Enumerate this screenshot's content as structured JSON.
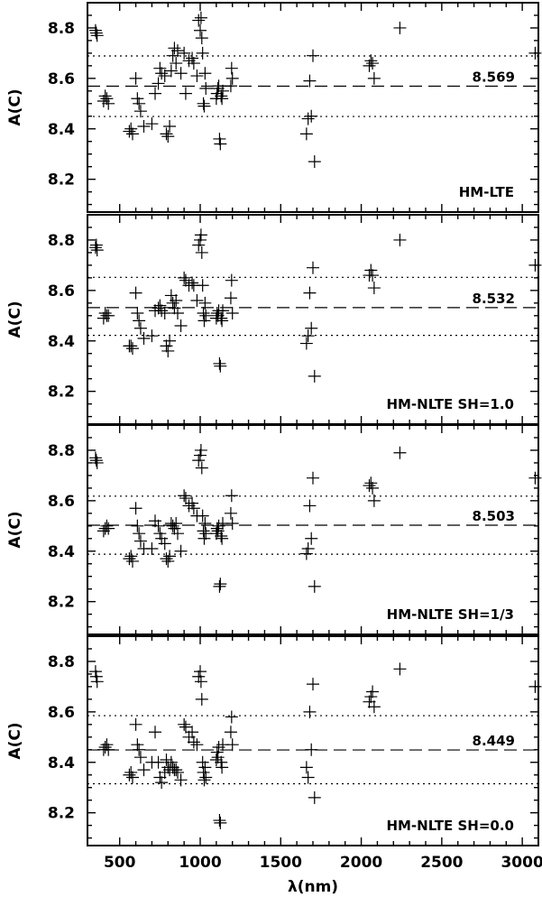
{
  "chart_data": [
    {
      "type": "scatter",
      "label": "HM-LTE",
      "mean": 8.569,
      "mean_text": "8.569",
      "sigma_band": [
        8.449,
        8.689
      ],
      "xlim": [
        300,
        3100
      ],
      "ylim": [
        8.07,
        8.9
      ],
      "yticks": [
        "8.2",
        "8.4",
        "8.6",
        "8.8"
      ],
      "ylabel": "A(C)",
      "points": [
        [
          350,
          8.79
        ],
        [
          355,
          8.78
        ],
        [
          360,
          8.77
        ],
        [
          400,
          8.51
        ],
        [
          410,
          8.53
        ],
        [
          420,
          8.52
        ],
        [
          430,
          8.5
        ],
        [
          560,
          8.39
        ],
        [
          570,
          8.4
        ],
        [
          580,
          8.38
        ],
        [
          600,
          8.6
        ],
        [
          610,
          8.52
        ],
        [
          620,
          8.5
        ],
        [
          630,
          8.47
        ],
        [
          650,
          8.41
        ],
        [
          700,
          8.42
        ],
        [
          720,
          8.54
        ],
        [
          740,
          8.58
        ],
        [
          750,
          8.64
        ],
        [
          760,
          8.62
        ],
        [
          780,
          8.61
        ],
        [
          790,
          8.38
        ],
        [
          800,
          8.37
        ],
        [
          810,
          8.41
        ],
        [
          820,
          8.63
        ],
        [
          830,
          8.69
        ],
        [
          840,
          8.72
        ],
        [
          850,
          8.66
        ],
        [
          860,
          8.71
        ],
        [
          880,
          8.62
        ],
        [
          900,
          8.7
        ],
        [
          910,
          8.54
        ],
        [
          930,
          8.67
        ],
        [
          950,
          8.68
        ],
        [
          960,
          8.66
        ],
        [
          980,
          8.61
        ],
        [
          990,
          8.83
        ],
        [
          1000,
          8.79
        ],
        [
          1005,
          8.84
        ],
        [
          1010,
          8.76
        ],
        [
          1015,
          8.7
        ],
        [
          1020,
          8.5
        ],
        [
          1025,
          8.49
        ],
        [
          1030,
          8.62
        ],
        [
          1035,
          8.56
        ],
        [
          1100,
          8.52
        ],
        [
          1105,
          8.54
        ],
        [
          1110,
          8.56
        ],
        [
          1115,
          8.57
        ],
        [
          1120,
          8.36
        ],
        [
          1125,
          8.34
        ],
        [
          1130,
          8.53
        ],
        [
          1135,
          8.52
        ],
        [
          1140,
          8.55
        ],
        [
          1190,
          8.57
        ],
        [
          1195,
          8.64
        ],
        [
          1200,
          8.6
        ],
        [
          1660,
          8.38
        ],
        [
          1670,
          8.44
        ],
        [
          1680,
          8.59
        ],
        [
          1690,
          8.45
        ],
        [
          1700,
          8.69
        ],
        [
          1710,
          8.27
        ],
        [
          2050,
          8.65
        ],
        [
          2060,
          8.67
        ],
        [
          2070,
          8.66
        ],
        [
          2080,
          8.6
        ],
        [
          2240,
          8.8
        ],
        [
          3080,
          8.7
        ]
      ]
    },
    {
      "type": "scatter",
      "label": "HM-NLTE SH=1.0",
      "mean": 8.532,
      "mean_text": "8.532",
      "sigma_band": [
        8.422,
        8.652
      ],
      "xlim": [
        300,
        3100
      ],
      "ylim": [
        8.07,
        8.9
      ],
      "yticks": [
        "8.2",
        "8.4",
        "8.6",
        "8.8"
      ],
      "ylabel": "A(C)",
      "points": [
        [
          350,
          8.77
        ],
        [
          355,
          8.78
        ],
        [
          360,
          8.76
        ],
        [
          400,
          8.49
        ],
        [
          410,
          8.51
        ],
        [
          420,
          8.5
        ],
        [
          430,
          8.5
        ],
        [
          560,
          8.38
        ],
        [
          570,
          8.38
        ],
        [
          580,
          8.37
        ],
        [
          600,
          8.59
        ],
        [
          610,
          8.51
        ],
        [
          620,
          8.48
        ],
        [
          630,
          8.45
        ],
        [
          650,
          8.41
        ],
        [
          700,
          8.42
        ],
        [
          720,
          8.52
        ],
        [
          740,
          8.53
        ],
        [
          750,
          8.54
        ],
        [
          760,
          8.52
        ],
        [
          780,
          8.51
        ],
        [
          790,
          8.38
        ],
        [
          800,
          8.36
        ],
        [
          810,
          8.4
        ],
        [
          820,
          8.58
        ],
        [
          830,
          8.55
        ],
        [
          840,
          8.53
        ],
        [
          850,
          8.56
        ],
        [
          860,
          8.51
        ],
        [
          880,
          8.46
        ],
        [
          900,
          8.65
        ],
        [
          910,
          8.64
        ],
        [
          930,
          8.62
        ],
        [
          950,
          8.63
        ],
        [
          960,
          8.62
        ],
        [
          980,
          8.56
        ],
        [
          990,
          8.78
        ],
        [
          1000,
          8.8
        ],
        [
          1005,
          8.82
        ],
        [
          1010,
          8.75
        ],
        [
          1015,
          8.62
        ],
        [
          1020,
          8.51
        ],
        [
          1025,
          8.48
        ],
        [
          1030,
          8.55
        ],
        [
          1035,
          8.5
        ],
        [
          1100,
          8.49
        ],
        [
          1105,
          8.51
        ],
        [
          1110,
          8.5
        ],
        [
          1115,
          8.52
        ],
        [
          1120,
          8.31
        ],
        [
          1125,
          8.3
        ],
        [
          1130,
          8.49
        ],
        [
          1135,
          8.48
        ],
        [
          1140,
          8.52
        ],
        [
          1190,
          8.57
        ],
        [
          1195,
          8.64
        ],
        [
          1200,
          8.51
        ],
        [
          1660,
          8.39
        ],
        [
          1670,
          8.42
        ],
        [
          1680,
          8.59
        ],
        [
          1690,
          8.45
        ],
        [
          1700,
          8.69
        ],
        [
          1710,
          8.26
        ],
        [
          2050,
          8.66
        ],
        [
          2060,
          8.68
        ],
        [
          2070,
          8.66
        ],
        [
          2080,
          8.61
        ],
        [
          2240,
          8.8
        ],
        [
          3080,
          8.7
        ]
      ]
    },
    {
      "type": "scatter",
      "label": "HM-NLTE SH=1/3",
      "mean": 8.503,
      "mean_text": "8.503",
      "sigma_band": [
        8.388,
        8.618
      ],
      "xlim": [
        300,
        3100
      ],
      "ylim": [
        8.07,
        8.9
      ],
      "yticks": [
        "8.2",
        "8.4",
        "8.6",
        "8.8"
      ],
      "ylabel": "A(C)",
      "points": [
        [
          350,
          8.77
        ],
        [
          355,
          8.76
        ],
        [
          360,
          8.75
        ],
        [
          400,
          8.48
        ],
        [
          410,
          8.49
        ],
        [
          420,
          8.5
        ],
        [
          430,
          8.49
        ],
        [
          560,
          8.37
        ],
        [
          570,
          8.38
        ],
        [
          580,
          8.36
        ],
        [
          600,
          8.57
        ],
        [
          610,
          8.5
        ],
        [
          620,
          8.47
        ],
        [
          630,
          8.44
        ],
        [
          650,
          8.41
        ],
        [
          700,
          8.41
        ],
        [
          720,
          8.52
        ],
        [
          740,
          8.5
        ],
        [
          750,
          8.47
        ],
        [
          760,
          8.45
        ],
        [
          780,
          8.43
        ],
        [
          790,
          8.37
        ],
        [
          800,
          8.36
        ],
        [
          810,
          8.38
        ],
        [
          820,
          8.51
        ],
        [
          830,
          8.5
        ],
        [
          840,
          8.49
        ],
        [
          850,
          8.51
        ],
        [
          860,
          8.47
        ],
        [
          880,
          8.4
        ],
        [
          900,
          8.62
        ],
        [
          910,
          8.61
        ],
        [
          930,
          8.58
        ],
        [
          950,
          8.59
        ],
        [
          960,
          8.57
        ],
        [
          980,
          8.54
        ],
        [
          990,
          8.76
        ],
        [
          1000,
          8.78
        ],
        [
          1005,
          8.8
        ],
        [
          1010,
          8.73
        ],
        [
          1015,
          8.54
        ],
        [
          1020,
          8.48
        ],
        [
          1025,
          8.45
        ],
        [
          1030,
          8.51
        ],
        [
          1035,
          8.47
        ],
        [
          1100,
          8.47
        ],
        [
          1105,
          8.49
        ],
        [
          1110,
          8.48
        ],
        [
          1115,
          8.5
        ],
        [
          1120,
          8.26
        ],
        [
          1125,
          8.27
        ],
        [
          1130,
          8.46
        ],
        [
          1135,
          8.45
        ],
        [
          1140,
          8.51
        ],
        [
          1190,
          8.55
        ],
        [
          1195,
          8.62
        ],
        [
          1200,
          8.51
        ],
        [
          1660,
          8.39
        ],
        [
          1670,
          8.41
        ],
        [
          1680,
          8.58
        ],
        [
          1690,
          8.45
        ],
        [
          1700,
          8.69
        ],
        [
          1710,
          8.26
        ],
        [
          2050,
          8.66
        ],
        [
          2060,
          8.67
        ],
        [
          2070,
          8.65
        ],
        [
          2080,
          8.6
        ],
        [
          2240,
          8.79
        ],
        [
          3080,
          8.69
        ]
      ]
    },
    {
      "type": "scatter",
      "label": "HM-NLTE SH=0.0",
      "mean": 8.449,
      "mean_text": "8.449",
      "sigma_band": [
        8.315,
        8.585
      ],
      "xlim": [
        300,
        3100
      ],
      "ylim": [
        8.07,
        8.9
      ],
      "yticks": [
        "8.2",
        "8.4",
        "8.6",
        "8.8"
      ],
      "ylabel": "A(C)",
      "xticks": [
        "500",
        "1000",
        "1500",
        "2000",
        "2500",
        "3000"
      ],
      "xlabel": "λ(nm)",
      "points": [
        [
          350,
          8.76
        ],
        [
          355,
          8.74
        ],
        [
          360,
          8.72
        ],
        [
          400,
          8.45
        ],
        [
          410,
          8.46
        ],
        [
          420,
          8.47
        ],
        [
          430,
          8.45
        ],
        [
          560,
          8.35
        ],
        [
          570,
          8.36
        ],
        [
          580,
          8.34
        ],
        [
          600,
          8.55
        ],
        [
          610,
          8.47
        ],
        [
          620,
          8.45
        ],
        [
          630,
          8.42
        ],
        [
          650,
          8.37
        ],
        [
          700,
          8.4
        ],
        [
          720,
          8.52
        ],
        [
          740,
          8.4
        ],
        [
          750,
          8.34
        ],
        [
          760,
          8.32
        ],
        [
          780,
          8.36
        ],
        [
          790,
          8.41
        ],
        [
          800,
          8.38
        ],
        [
          810,
          8.37
        ],
        [
          820,
          8.4
        ],
        [
          830,
          8.38
        ],
        [
          840,
          8.37
        ],
        [
          850,
          8.37
        ],
        [
          860,
          8.36
        ],
        [
          880,
          8.33
        ],
        [
          900,
          8.55
        ],
        [
          910,
          8.54
        ],
        [
          930,
          8.5
        ],
        [
          950,
          8.52
        ],
        [
          960,
          8.48
        ],
        [
          980,
          8.47
        ],
        [
          990,
          8.74
        ],
        [
          1000,
          8.76
        ],
        [
          1005,
          8.72
        ],
        [
          1010,
          8.65
        ],
        [
          1015,
          8.4
        ],
        [
          1020,
          8.36
        ],
        [
          1025,
          8.33
        ],
        [
          1030,
          8.38
        ],
        [
          1035,
          8.34
        ],
        [
          1100,
          8.41
        ],
        [
          1105,
          8.44
        ],
        [
          1110,
          8.42
        ],
        [
          1115,
          8.46
        ],
        [
          1120,
          8.17
        ],
        [
          1125,
          8.16
        ],
        [
          1130,
          8.4
        ],
        [
          1135,
          8.38
        ],
        [
          1140,
          8.47
        ],
        [
          1190,
          8.52
        ],
        [
          1195,
          8.58
        ],
        [
          1200,
          8.47
        ],
        [
          1660,
          8.38
        ],
        [
          1670,
          8.34
        ],
        [
          1680,
          8.6
        ],
        [
          1690,
          8.45
        ],
        [
          1700,
          8.71
        ],
        [
          1710,
          8.26
        ],
        [
          2050,
          8.64
        ],
        [
          2060,
          8.66
        ],
        [
          2070,
          8.68
        ],
        [
          2080,
          8.62
        ],
        [
          2240,
          8.77
        ],
        [
          3080,
          8.7
        ]
      ]
    }
  ]
}
